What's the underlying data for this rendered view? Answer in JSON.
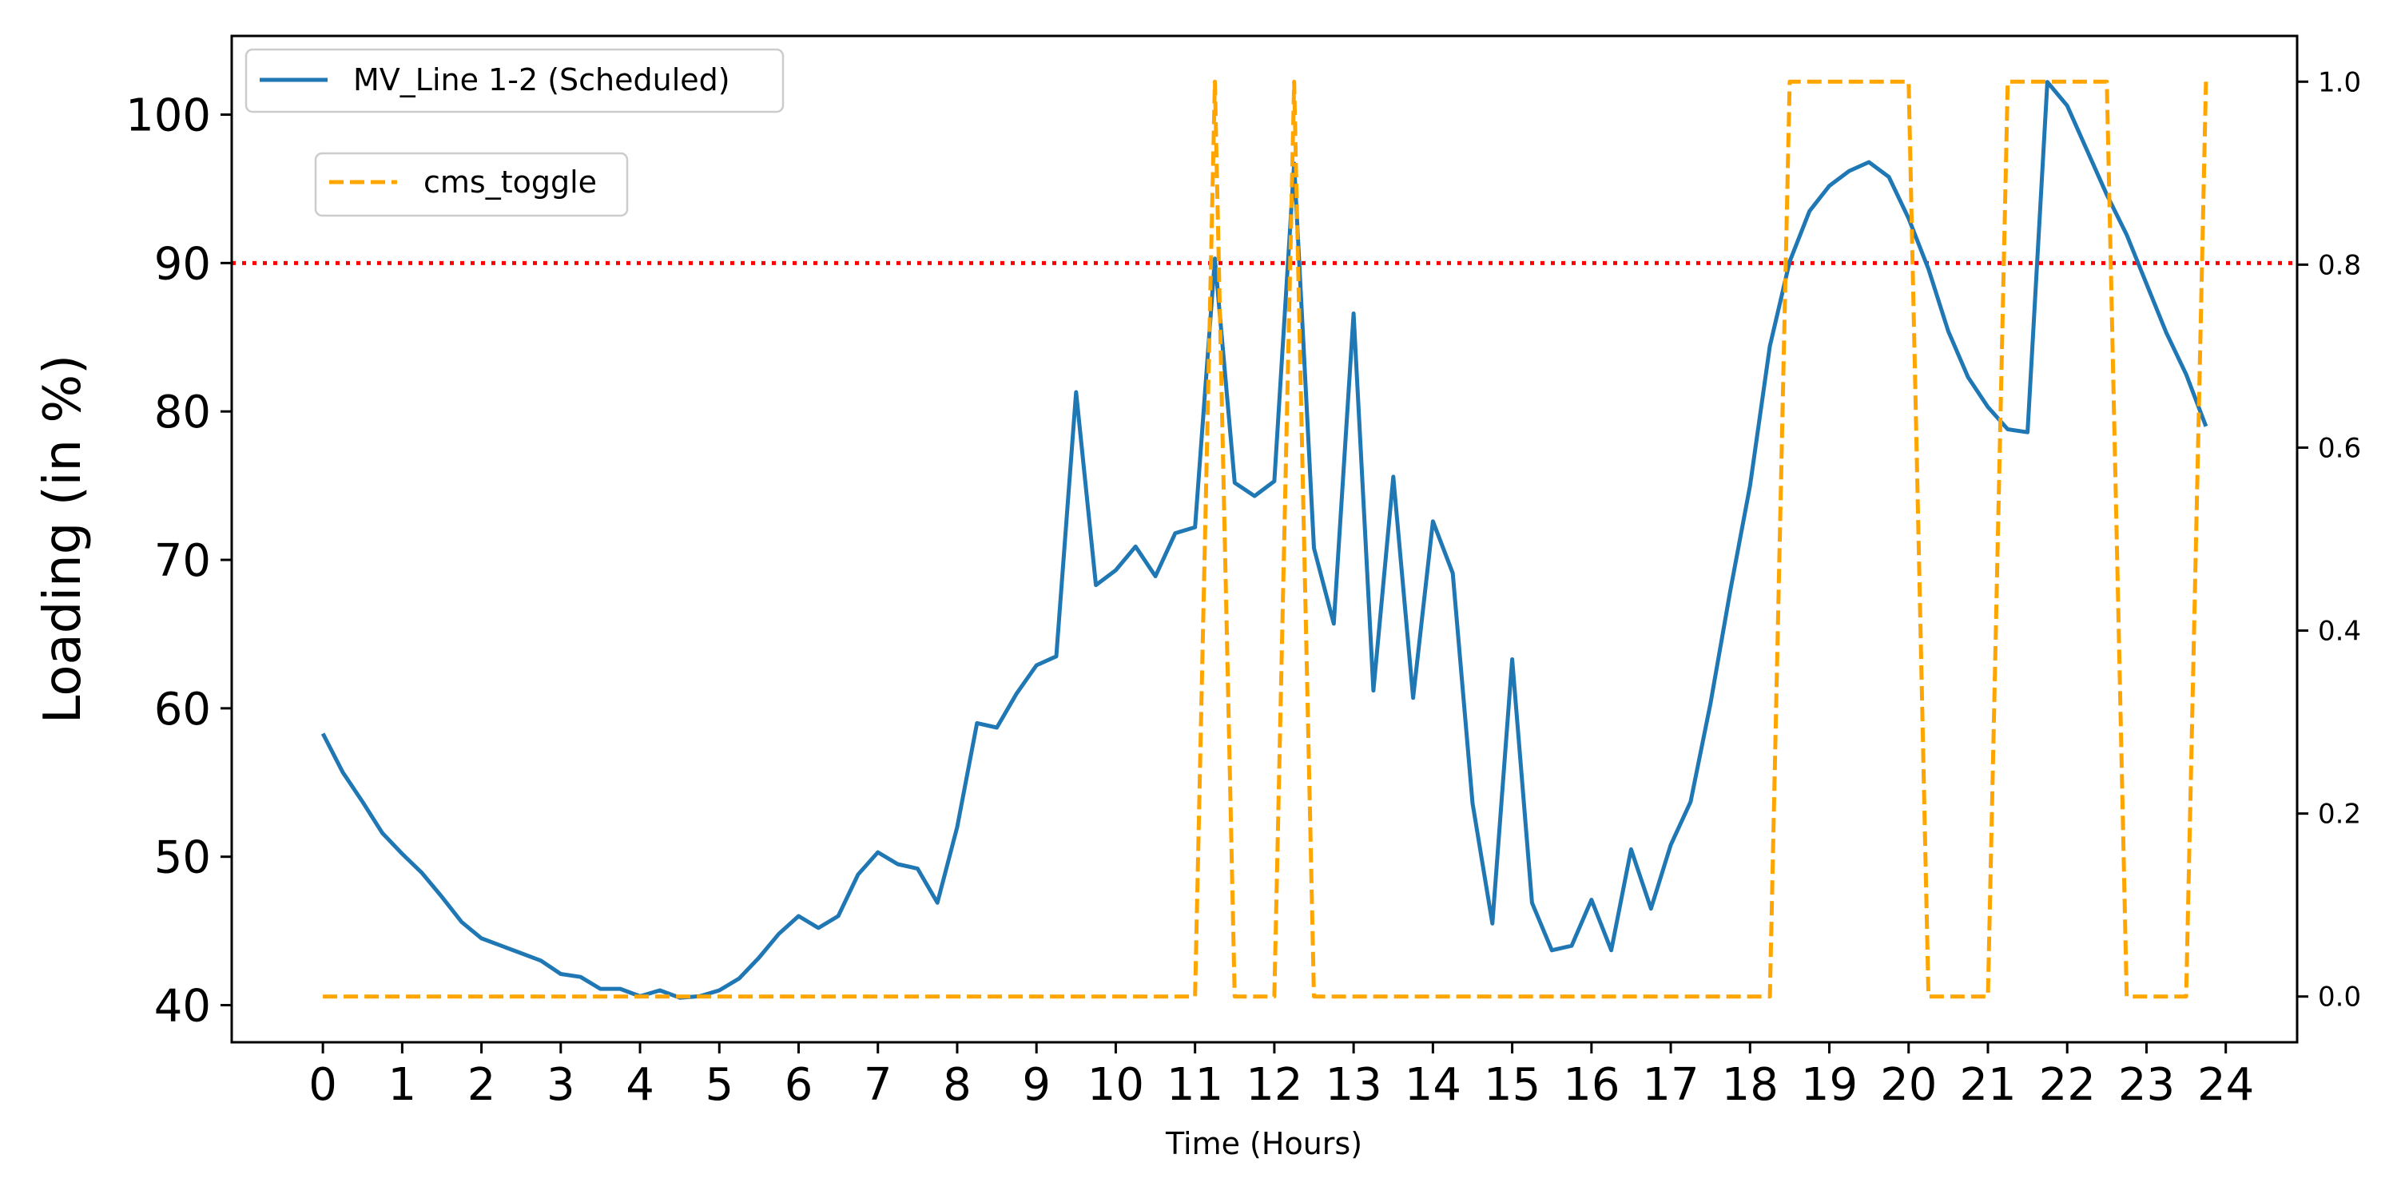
{
  "chart_data": {
    "type": "line",
    "xlabel": "Time (Hours)",
    "ylabel": "Loading (in %)",
    "xlim": [
      -1.15,
      24.9
    ],
    "ylim": [
      37.5,
      105.3
    ],
    "y2lim": [
      -0.05,
      1.05
    ],
    "x_ticks": [
      0,
      1,
      2,
      3,
      4,
      5,
      6,
      7,
      8,
      9,
      10,
      11,
      12,
      13,
      14,
      15,
      16,
      17,
      18,
      19,
      20,
      21,
      22,
      23,
      24
    ],
    "y_ticks": [
      40,
      50,
      60,
      70,
      80,
      90,
      100
    ],
    "y2_ticks": [
      "0.0",
      "0.2",
      "0.4",
      "0.6",
      "0.8",
      "1.0"
    ],
    "threshold": {
      "y": 90,
      "color": "#ff0000",
      "style": "dotted"
    },
    "legend_placement": "top-left",
    "series": [
      {
        "name": "MV_Line 1-2 (Scheduled)",
        "axis": "left",
        "color": "#1f77b4",
        "style": "solid",
        "x": [
          0,
          0.25,
          0.5,
          0.75,
          1,
          1.25,
          1.5,
          1.75,
          2,
          2.25,
          2.5,
          2.75,
          3,
          3.25,
          3.5,
          3.75,
          4,
          4.25,
          4.5,
          4.75,
          5,
          5.25,
          5.5,
          5.75,
          6,
          6.25,
          6.5,
          6.75,
          7,
          7.25,
          7.5,
          7.75,
          8,
          8.25,
          8.5,
          8.75,
          9,
          9.25,
          9.5,
          9.75,
          10,
          10.25,
          10.5,
          10.75,
          11,
          11.25,
          11.5,
          11.75,
          12,
          12.25,
          12.5,
          12.75,
          13,
          13.25,
          13.5,
          13.75,
          14,
          14.25,
          14.5,
          14.75,
          15,
          15.25,
          15.5,
          15.75,
          16,
          16.25,
          16.5,
          16.75,
          17,
          17.25,
          17.5,
          17.75,
          18,
          18.25,
          18.5,
          18.75,
          19,
          19.25,
          19.5,
          19.75,
          20,
          20.25,
          20.5,
          20.75,
          21,
          21.25,
          21.5,
          21.75,
          22,
          22.25,
          22.5,
          22.75,
          23,
          23.25,
          23.5,
          23.75
        ],
        "values": [
          58.3,
          55.7,
          53.7,
          51.6,
          50.2,
          48.9,
          47.3,
          45.6,
          44.5,
          44.0,
          43.5,
          43.0,
          42.1,
          41.9,
          41.1,
          41.1,
          40.6,
          41.0,
          40.5,
          40.6,
          41.0,
          41.8,
          43.2,
          44.8,
          46.0,
          45.2,
          46.0,
          48.8,
          50.3,
          49.5,
          49.2,
          46.9,
          52.0,
          59.0,
          58.7,
          61.0,
          62.9,
          63.5,
          81.3,
          68.3,
          69.3,
          70.9,
          68.9,
          71.8,
          72.2,
          90.3,
          75.2,
          74.3,
          75.3,
          96.7,
          70.8,
          65.7,
          86.6,
          61.2,
          75.6,
          60.7,
          72.6,
          69.1,
          53.6,
          45.5,
          63.3,
          46.9,
          43.7,
          44.0,
          47.1,
          43.7,
          50.5,
          46.5,
          50.8,
          53.7,
          60.3,
          67.9,
          75.0,
          84.4,
          90.1,
          93.5,
          95.2,
          96.2,
          96.8,
          95.8,
          93.0,
          89.6,
          85.4,
          82.3,
          80.3,
          78.8,
          78.6,
          102.2,
          100.6,
          97.6,
          94.6,
          91.9,
          88.6,
          85.3,
          82.5,
          79.0
        ]
      },
      {
        "name": "cms_toggle",
        "axis": "right",
        "color": "#ffa500",
        "style": "dashed",
        "x": [
          0,
          11,
          11.25,
          11.5,
          12,
          12.25,
          12.5,
          18.25,
          18.5,
          20,
          20.25,
          21,
          21.25,
          22.5,
          22.75,
          23.5,
          23.75
        ],
        "values": [
          0,
          0,
          1,
          0,
          0,
          1,
          0,
          0,
          1,
          1,
          0,
          0,
          1,
          1,
          0,
          0,
          1
        ]
      }
    ]
  }
}
